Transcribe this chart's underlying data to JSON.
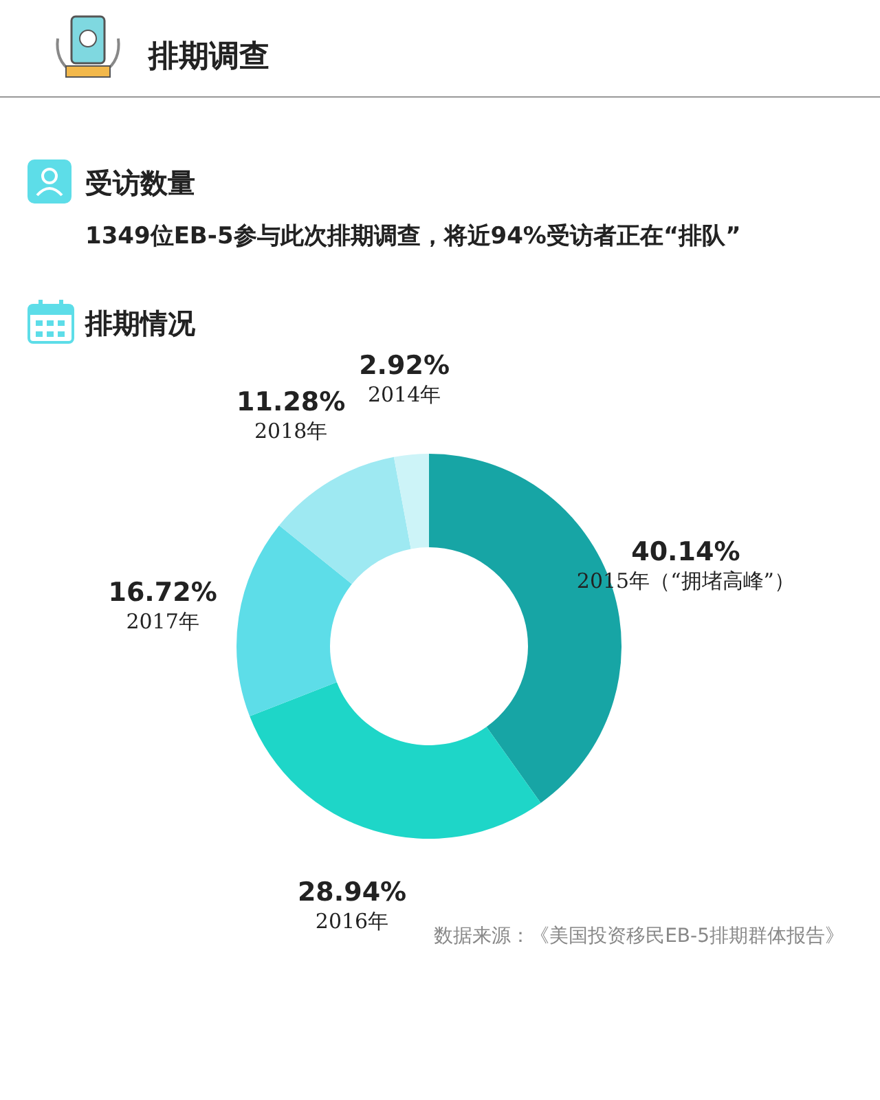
{
  "chart_data": {
    "type": "donut",
    "title": "排期调查",
    "categories": [
      "2015年（“拥堵高峰”）",
      "2016年",
      "2017年",
      "2018年",
      "2014年"
    ],
    "values": [
      40.14,
      28.94,
      16.72,
      11.28,
      2.92
    ],
    "colors": [
      "#17a5a5",
      "#1ed6c8",
      "#5ddde8",
      "#9ee9f2",
      "#cdf4f8"
    ],
    "value_labels": [
      "40.14%",
      "28.94%",
      "16.72%",
      "11.28%",
      "2.92%"
    ],
    "annotations": [
      "受访数量",
      "1349位EB-5参与此次排期调查，将近94%受访者正在“排队”",
      "排期情况",
      "数据来源：《美国投资移民EB-5排期群体报告》"
    ]
  }
}
